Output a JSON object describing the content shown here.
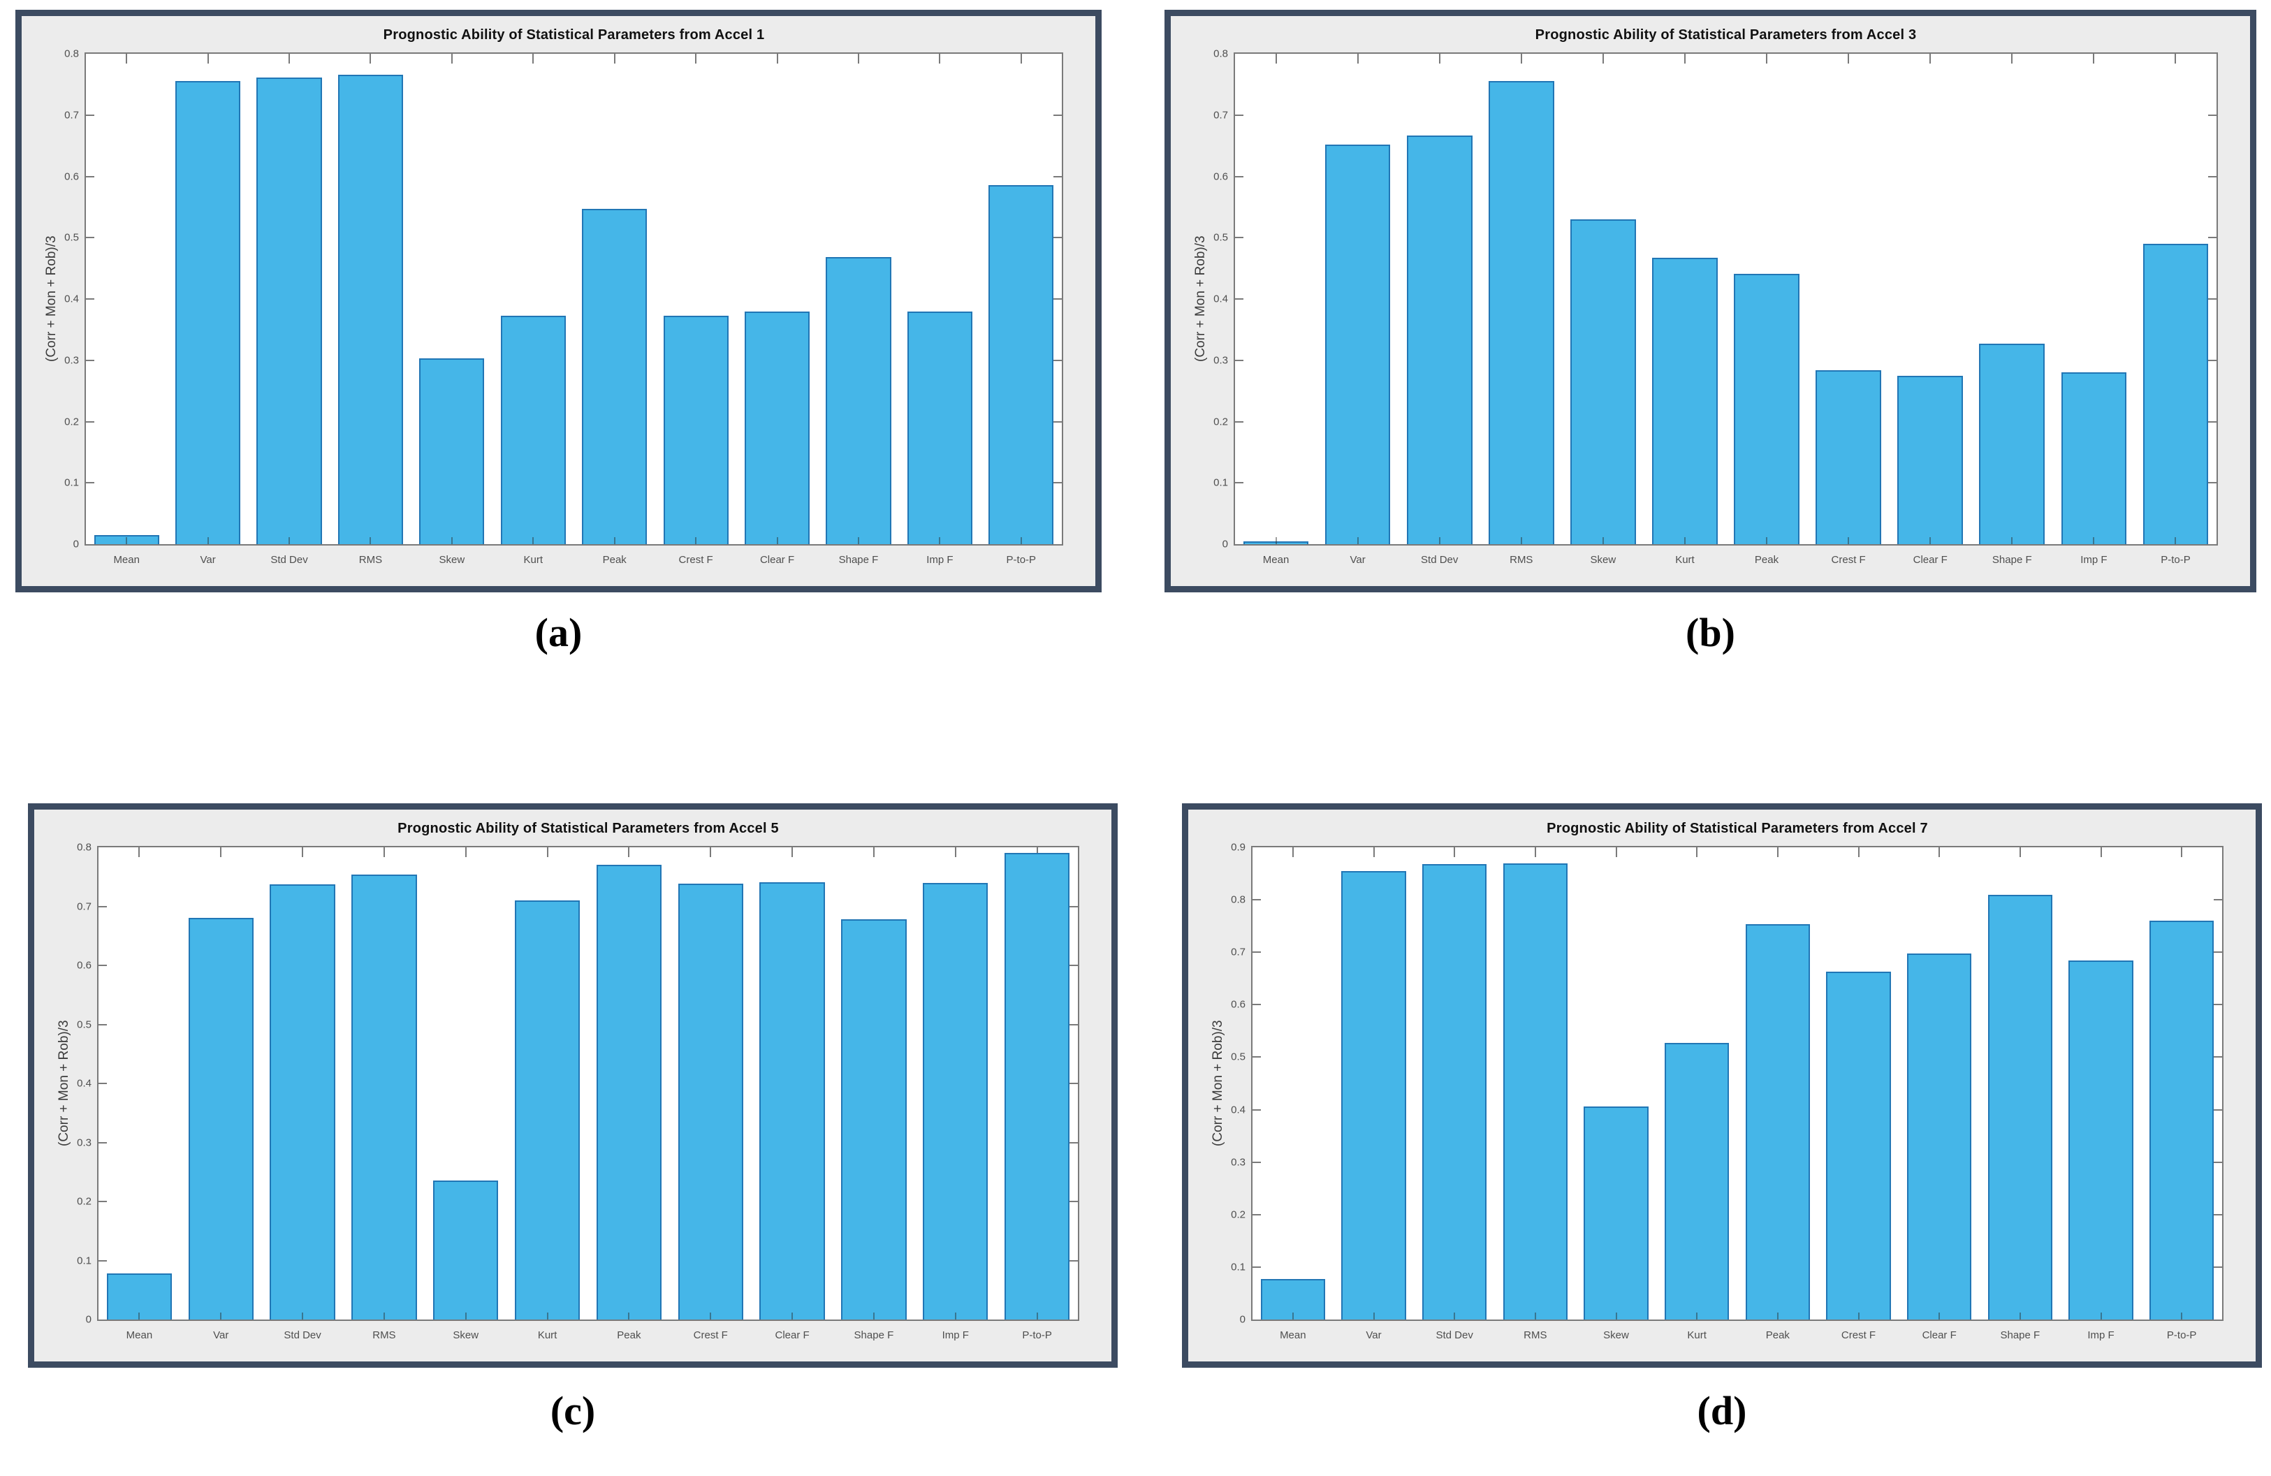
{
  "style": {
    "page_bg": "#ffffff",
    "panel_border": "#3c4b61",
    "panel_bg": "#ececec",
    "plot_bg": "#ffffff",
    "axis_line": "#7a7a7a",
    "tick_label": "#4f4f4f",
    "title_color": "#111111",
    "bar_fill": "#45b6e8",
    "bar_edge": "#2176b5",
    "caption_color": "#000000"
  },
  "figure": {
    "captions": [
      "(a)",
      "(b)",
      "(c)",
      "(d)"
    ]
  },
  "chart_data": [
    {
      "type": "bar",
      "title": "Prognostic Ability of Statistical Parameters from Accel 1",
      "ylabel": "(Corr + Mon + Rob)/3",
      "xlabel": "",
      "categories": [
        "Mean",
        "Var",
        "Std Dev",
        "RMS",
        "Skew",
        "Kurt",
        "Peak",
        "Crest F",
        "Clear F",
        "Shape F",
        "Imp F",
        "P-to-P"
      ],
      "values": [
        0.015,
        0.756,
        0.761,
        0.766,
        0.303,
        0.373,
        0.547,
        0.373,
        0.38,
        0.468,
        0.379,
        0.586
      ],
      "ylim": [
        0,
        0.8
      ],
      "ytick_step": 0.1,
      "grid": false,
      "legend": null,
      "bar_width_fraction": 0.8
    },
    {
      "type": "bar",
      "title": "Prognostic Ability of Statistical Parameters from Accel 3",
      "ylabel": "(Corr + Mon + Rob)/3",
      "xlabel": "",
      "categories": [
        "Mean",
        "Var",
        "Std Dev",
        "RMS",
        "Skew",
        "Kurt",
        "Peak",
        "Crest F",
        "Clear F",
        "Shape F",
        "Imp F",
        "P-to-P"
      ],
      "values": [
        0.005,
        0.652,
        0.667,
        0.756,
        0.53,
        0.467,
        0.441,
        0.284,
        0.275,
        0.327,
        0.28,
        0.49
      ],
      "ylim": [
        0,
        0.8
      ],
      "ytick_step": 0.1,
      "grid": false,
      "legend": null,
      "bar_width_fraction": 0.8
    },
    {
      "type": "bar",
      "title": "Prognostic Ability of Statistical Parameters from Accel 5",
      "ylabel": "(Corr + Mon + Rob)/3",
      "xlabel": "",
      "categories": [
        "Mean",
        "Var",
        "Std Dev",
        "RMS",
        "Skew",
        "Kurt",
        "Peak",
        "Crest F",
        "Clear F",
        "Shape F",
        "Imp F",
        "P-to-P"
      ],
      "values": [
        0.078,
        0.68,
        0.737,
        0.754,
        0.235,
        0.71,
        0.77,
        0.738,
        0.741,
        0.678,
        0.74,
        0.79
      ],
      "ylim": [
        0,
        0.8
      ],
      "ytick_step": 0.1,
      "grid": false,
      "legend": null,
      "bar_width_fraction": 0.8
    },
    {
      "type": "bar",
      "title": "Prognostic Ability of Statistical Parameters from Accel 7",
      "ylabel": "(Corr + Mon + Rob)/3",
      "xlabel": "",
      "categories": [
        "Mean",
        "Var",
        "Std Dev",
        "RMS",
        "Skew",
        "Kurt",
        "Peak",
        "Crest F",
        "Clear F",
        "Shape F",
        "Imp F",
        "P-to-P"
      ],
      "values": [
        0.077,
        0.855,
        0.868,
        0.87,
        0.406,
        0.527,
        0.753,
        0.663,
        0.698,
        0.81,
        0.685,
        0.76
      ],
      "ylim": [
        0,
        0.9
      ],
      "ytick_step": 0.1,
      "grid": false,
      "legend": null,
      "bar_width_fraction": 0.8
    }
  ]
}
